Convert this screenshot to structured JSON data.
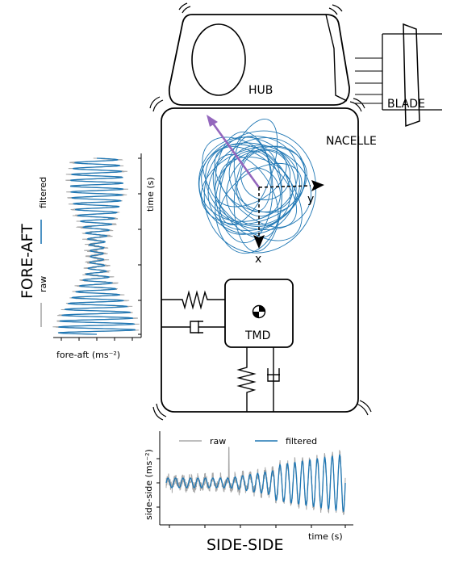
{
  "labels": {
    "hub": "HUB",
    "blade": "BLADE",
    "nacelle": "NACELLE",
    "tmd": "TMD",
    "fore_aft_title": "FORE-AFT",
    "side_side_title": "SIDE-SIDE"
  },
  "fore_aft_plot": {
    "xlabel": "fore-aft (ms⁻²)",
    "ylabel": "time (s)",
    "legend_raw": "raw",
    "legend_filtered": "filtered"
  },
  "side_side_plot": {
    "xlabel": "time (s)",
    "ylabel": "side-side (ms⁻²)",
    "legend_raw": "raw",
    "legend_filtered": "filtered"
  },
  "orbit_plot": {
    "axis_x": "x",
    "axis_y": "y"
  },
  "colors": {
    "raw": "#a8a8a8",
    "filtered": "#1f77b4",
    "arrow": "#9467bd",
    "outline": "#000000"
  }
}
